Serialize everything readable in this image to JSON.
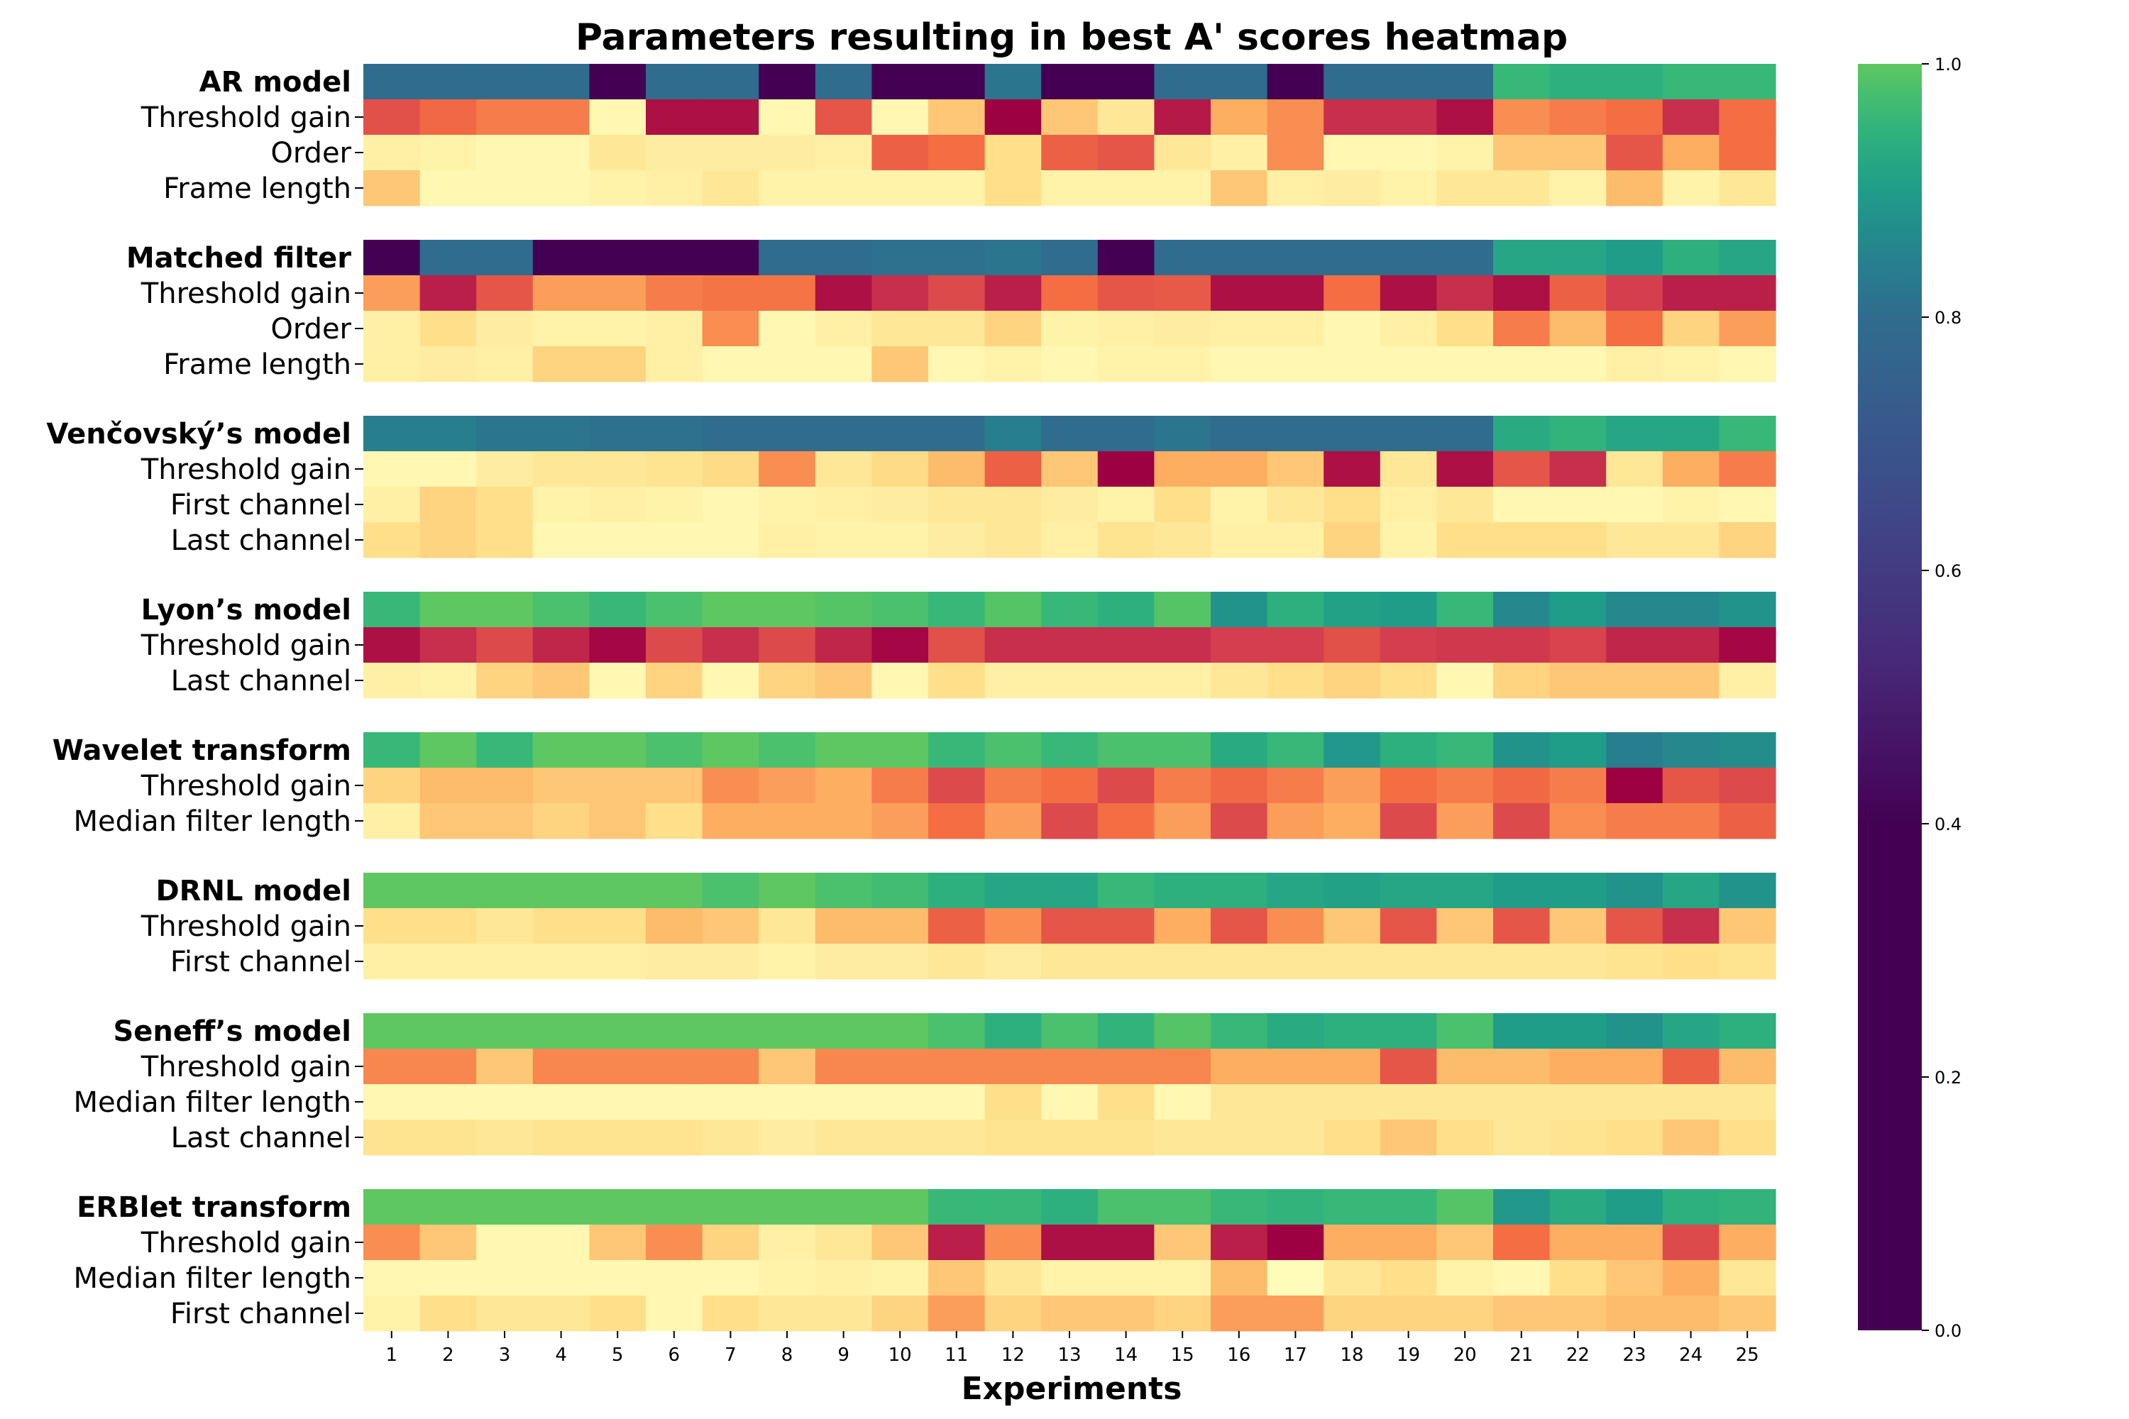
{
  "chart_data": {
    "type": "heatmap",
    "title": "Parameters resulting in best A' scores heatmap",
    "xlabel": "Experiments",
    "x": [
      1,
      2,
      3,
      4,
      5,
      6,
      7,
      8,
      9,
      10,
      11,
      12,
      13,
      14,
      15,
      16,
      17,
      18,
      19,
      20,
      21,
      22,
      23,
      24,
      25
    ],
    "colorbar": {
      "range": [
        0,
        1
      ],
      "ticks": [
        "0.0",
        "0.2",
        "0.4",
        "0.6",
        "0.8",
        "1.0"
      ]
    },
    "colormaps": {
      "score": "viridis",
      "parameter": "YlOrRd-reversed"
    },
    "groups": [
      {
        "name": "AR model",
        "score": [
          0.8,
          0.8,
          0.8,
          0.8,
          0.4,
          0.8,
          0.8,
          0.4,
          0.8,
          0.4,
          0.4,
          0.82,
          0.4,
          0.4,
          0.8,
          0.8,
          0.4,
          0.8,
          0.8,
          0.8,
          0.96,
          0.94,
          0.94,
          0.96,
          0.96
        ],
        "params": [
          {
            "name": "Threshold gain",
            "values": [
              0.72,
              0.62,
              0.55,
              0.55,
              0.05,
              0.95,
              0.95,
              0.05,
              0.7,
              0.05,
              0.3,
              1.0,
              0.3,
              0.15,
              0.92,
              0.4,
              0.5,
              0.85,
              0.85,
              0.95,
              0.5,
              0.55,
              0.6,
              0.85,
              0.6
            ]
          },
          {
            "name": "Order",
            "values": [
              0.1,
              0.08,
              0.05,
              0.05,
              0.15,
              0.12,
              0.12,
              0.12,
              0.1,
              0.65,
              0.6,
              0.2,
              0.65,
              0.7,
              0.15,
              0.1,
              0.5,
              0.05,
              0.05,
              0.08,
              0.3,
              0.3,
              0.7,
              0.4,
              0.6
            ]
          },
          {
            "name": "Frame length",
            "values": [
              0.3,
              0.05,
              0.05,
              0.05,
              0.08,
              0.1,
              0.15,
              0.08,
              0.08,
              0.08,
              0.08,
              0.2,
              0.08,
              0.08,
              0.08,
              0.3,
              0.1,
              0.12,
              0.08,
              0.15,
              0.15,
              0.08,
              0.35,
              0.08,
              0.15
            ]
          }
        ]
      },
      {
        "name": "Matched filter",
        "score": [
          0.4,
          0.8,
          0.8,
          0.4,
          0.4,
          0.4,
          0.4,
          0.8,
          0.8,
          0.81,
          0.81,
          0.82,
          0.8,
          0.4,
          0.8,
          0.8,
          0.8,
          0.8,
          0.8,
          0.8,
          0.92,
          0.92,
          0.9,
          0.94,
          0.92
        ],
        "params": [
          {
            "name": "Threshold gain",
            "values": [
              0.45,
              0.9,
              0.7,
              0.45,
              0.45,
              0.55,
              0.58,
              0.58,
              0.95,
              0.85,
              0.75,
              0.9,
              0.6,
              0.7,
              0.68,
              0.95,
              0.95,
              0.6,
              0.95,
              0.85,
              0.95,
              0.65,
              0.8,
              0.9,
              0.9
            ]
          },
          {
            "name": "Order",
            "values": [
              0.1,
              0.2,
              0.12,
              0.08,
              0.08,
              0.1,
              0.5,
              0.05,
              0.1,
              0.15,
              0.15,
              0.25,
              0.08,
              0.1,
              0.12,
              0.1,
              0.1,
              0.05,
              0.1,
              0.2,
              0.55,
              0.35,
              0.6,
              0.25,
              0.45
            ]
          },
          {
            "name": "Frame length",
            "values": [
              0.1,
              0.12,
              0.1,
              0.25,
              0.25,
              0.1,
              0.05,
              0.05,
              0.05,
              0.3,
              0.05,
              0.08,
              0.05,
              0.08,
              0.08,
              0.05,
              0.05,
              0.05,
              0.05,
              0.05,
              0.05,
              0.05,
              0.1,
              0.08,
              0.05
            ]
          }
        ]
      },
      {
        "name": "Venčovský’s model",
        "score": [
          0.84,
          0.84,
          0.82,
          0.82,
          0.81,
          0.81,
          0.8,
          0.8,
          0.8,
          0.8,
          0.8,
          0.84,
          0.8,
          0.8,
          0.82,
          0.8,
          0.8,
          0.8,
          0.8,
          0.8,
          0.93,
          0.95,
          0.92,
          0.92,
          0.96
        ],
        "params": [
          {
            "name": "Threshold gain",
            "values": [
              0.05,
              0.05,
              0.12,
              0.15,
              0.15,
              0.18,
              0.22,
              0.5,
              0.15,
              0.22,
              0.35,
              0.65,
              0.3,
              1.0,
              0.4,
              0.4,
              0.3,
              0.95,
              0.15,
              0.95,
              0.7,
              0.85,
              0.15,
              0.4,
              0.55
            ]
          },
          {
            "name": "First channel",
            "values": [
              0.1,
              0.25,
              0.2,
              0.08,
              0.1,
              0.08,
              0.05,
              0.08,
              0.1,
              0.12,
              0.15,
              0.15,
              0.12,
              0.08,
              0.2,
              0.08,
              0.15,
              0.2,
              0.1,
              0.15,
              0.05,
              0.05,
              0.05,
              0.08,
              0.05
            ]
          },
          {
            "name": "Last channel",
            "values": [
              0.2,
              0.25,
              0.2,
              0.05,
              0.05,
              0.05,
              0.05,
              0.1,
              0.08,
              0.08,
              0.12,
              0.15,
              0.1,
              0.18,
              0.15,
              0.1,
              0.1,
              0.25,
              0.08,
              0.2,
              0.2,
              0.2,
              0.15,
              0.15,
              0.25
            ]
          }
        ]
      },
      {
        "name": "Lyon’s model",
        "score": [
          0.96,
          1.0,
          1.0,
          0.98,
          0.96,
          0.98,
          1.0,
          1.0,
          0.99,
          0.98,
          0.96,
          0.99,
          0.96,
          0.94,
          0.99,
          0.88,
          0.94,
          0.91,
          0.9,
          0.96,
          0.86,
          0.9,
          0.86,
          0.86,
          0.88
        ],
        "params": [
          {
            "name": "Threshold gain",
            "values": [
              0.95,
              0.85,
              0.75,
              0.88,
              0.98,
              0.75,
              0.85,
              0.75,
              0.88,
              0.98,
              0.72,
              0.85,
              0.85,
              0.85,
              0.85,
              0.8,
              0.8,
              0.72,
              0.8,
              0.82,
              0.82,
              0.78,
              0.88,
              0.88,
              0.98
            ]
          },
          {
            "name": "Last channel",
            "values": [
              0.1,
              0.08,
              0.25,
              0.3,
              0.05,
              0.25,
              0.05,
              0.25,
              0.3,
              0.05,
              0.2,
              0.1,
              0.1,
              0.1,
              0.1,
              0.15,
              0.2,
              0.25,
              0.2,
              0.05,
              0.25,
              0.3,
              0.3,
              0.3,
              0.1
            ]
          }
        ]
      },
      {
        "name": "Wavelet transform",
        "score": [
          0.96,
          1.0,
          0.96,
          1.0,
          1.0,
          0.98,
          1.0,
          0.98,
          1.0,
          1.0,
          0.96,
          0.98,
          0.96,
          0.98,
          0.98,
          0.93,
          0.96,
          0.89,
          0.94,
          0.96,
          0.88,
          0.9,
          0.84,
          0.86,
          0.87
        ],
        "params": [
          {
            "name": "Threshold gain",
            "values": [
              0.25,
              0.35,
              0.35,
              0.3,
              0.3,
              0.3,
              0.5,
              0.45,
              0.4,
              0.55,
              0.75,
              0.55,
              0.6,
              0.75,
              0.55,
              0.62,
              0.55,
              0.45,
              0.6,
              0.55,
              0.62,
              0.55,
              1.0,
              0.7,
              0.75
            ]
          },
          {
            "name": "Median filter length",
            "values": [
              0.1,
              0.3,
              0.3,
              0.25,
              0.3,
              0.2,
              0.4,
              0.4,
              0.4,
              0.45,
              0.6,
              0.45,
              0.75,
              0.6,
              0.45,
              0.75,
              0.45,
              0.4,
              0.75,
              0.45,
              0.75,
              0.5,
              0.55,
              0.55,
              0.65
            ]
          }
        ]
      },
      {
        "name": "DRNL model",
        "score": [
          1.0,
          1.0,
          1.0,
          1.0,
          1.0,
          1.0,
          0.98,
          1.0,
          0.98,
          0.97,
          0.94,
          0.92,
          0.92,
          0.96,
          0.94,
          0.94,
          0.92,
          0.91,
          0.92,
          0.92,
          0.9,
          0.9,
          0.88,
          0.92,
          0.88
        ],
        "params": [
          {
            "name": "Threshold gain",
            "values": [
              0.2,
              0.2,
              0.15,
              0.2,
              0.2,
              0.35,
              0.3,
              0.15,
              0.35,
              0.35,
              0.65,
              0.5,
              0.7,
              0.7,
              0.4,
              0.7,
              0.5,
              0.3,
              0.7,
              0.3,
              0.7,
              0.3,
              0.7,
              0.85,
              0.3
            ]
          },
          {
            "name": "First channel",
            "values": [
              0.1,
              0.1,
              0.1,
              0.1,
              0.1,
              0.12,
              0.12,
              0.08,
              0.12,
              0.12,
              0.15,
              0.12,
              0.15,
              0.15,
              0.15,
              0.15,
              0.15,
              0.15,
              0.15,
              0.15,
              0.15,
              0.15,
              0.18,
              0.2,
              0.18
            ]
          }
        ]
      },
      {
        "name": "Seneff’s model",
        "score": [
          1.0,
          1.0,
          1.0,
          1.0,
          1.0,
          1.0,
          1.0,
          1.0,
          1.0,
          1.0,
          0.98,
          0.94,
          0.98,
          0.95,
          0.99,
          0.96,
          0.93,
          0.94,
          0.94,
          0.98,
          0.9,
          0.9,
          0.88,
          0.92,
          0.94
        ],
        "params": [
          {
            "name": "Threshold gain",
            "values": [
              0.52,
              0.52,
              0.3,
              0.52,
              0.52,
              0.52,
              0.52,
              0.3,
              0.52,
              0.52,
              0.52,
              0.52,
              0.52,
              0.52,
              0.52,
              0.4,
              0.4,
              0.4,
              0.7,
              0.35,
              0.35,
              0.4,
              0.4,
              0.65,
              0.35
            ]
          },
          {
            "name": "Median filter length",
            "values": [
              0.05,
              0.05,
              0.05,
              0.05,
              0.05,
              0.05,
              0.05,
              0.05,
              0.05,
              0.05,
              0.05,
              0.2,
              0.05,
              0.2,
              0.05,
              0.15,
              0.15,
              0.15,
              0.15,
              0.15,
              0.15,
              0.15,
              0.15,
              0.15,
              0.15
            ]
          },
          {
            "name": "Last channel",
            "values": [
              0.18,
              0.18,
              0.15,
              0.18,
              0.18,
              0.18,
              0.15,
              0.12,
              0.15,
              0.15,
              0.15,
              0.18,
              0.18,
              0.18,
              0.15,
              0.15,
              0.15,
              0.2,
              0.3,
              0.2,
              0.15,
              0.18,
              0.2,
              0.3,
              0.2
            ]
          }
        ]
      },
      {
        "name": "ERBlet transform",
        "score": [
          1.0,
          1.0,
          1.0,
          1.0,
          1.0,
          1.0,
          1.0,
          1.0,
          1.0,
          1.0,
          0.96,
          0.96,
          0.94,
          0.98,
          0.98,
          0.96,
          0.95,
          0.96,
          0.96,
          0.99,
          0.89,
          0.93,
          0.9,
          0.94,
          0.95
        ],
        "params": [
          {
            "name": "Threshold gain",
            "values": [
              0.5,
              0.3,
              0.05,
              0.05,
              0.3,
              0.5,
              0.25,
              0.1,
              0.15,
              0.3,
              0.9,
              0.5,
              0.95,
              0.95,
              0.3,
              0.9,
              1.0,
              0.4,
              0.4,
              0.3,
              0.6,
              0.4,
              0.4,
              0.75,
              0.4
            ]
          },
          {
            "name": "Median filter length",
            "values": [
              0.05,
              0.05,
              0.05,
              0.05,
              0.05,
              0.05,
              0.05,
              0.08,
              0.1,
              0.08,
              0.3,
              0.15,
              0.08,
              0.08,
              0.08,
              0.35,
              0.02,
              0.15,
              0.2,
              0.08,
              0.05,
              0.2,
              0.3,
              0.4,
              0.15
            ]
          },
          {
            "name": "First channel",
            "values": [
              0.08,
              0.2,
              0.15,
              0.15,
              0.2,
              0.05,
              0.2,
              0.15,
              0.15,
              0.25,
              0.45,
              0.25,
              0.3,
              0.3,
              0.25,
              0.45,
              0.45,
              0.25,
              0.25,
              0.25,
              0.3,
              0.3,
              0.35,
              0.35,
              0.3
            ]
          }
        ]
      }
    ]
  }
}
